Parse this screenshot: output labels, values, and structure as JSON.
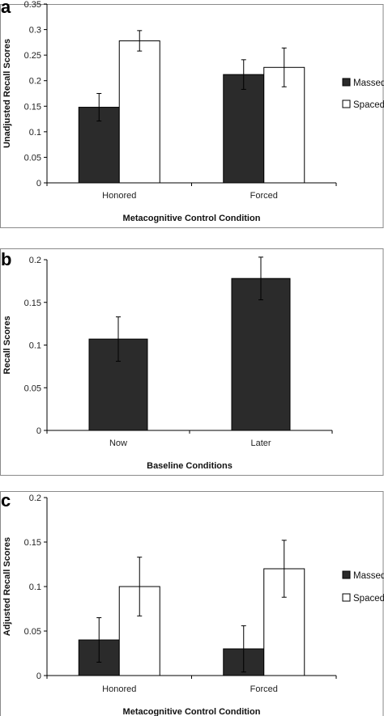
{
  "colors": {
    "massed": "#2b2b2b",
    "spaced": "#ffffff",
    "outline": "#000000",
    "frame": "#8a8a8a"
  },
  "chart_data": [
    {
      "panel": "a",
      "type": "bar",
      "categories": [
        "Honored",
        "Forced"
      ],
      "series": [
        {
          "name": "Massed",
          "values": [
            0.148,
            0.212
          ],
          "error": [
            0.027,
            0.029
          ]
        },
        {
          "name": "Spaced",
          "values": [
            0.278,
            0.226
          ],
          "error": [
            0.02,
            0.038
          ]
        }
      ],
      "xlabel": "Metacognitive Control Condition",
      "ylabel": "Unadjusted Recall Scores",
      "ylim": [
        0,
        0.35
      ],
      "yticks": [
        "0",
        "0.05",
        "0.1",
        "0.15",
        "0.2",
        "0.25",
        "0.3",
        "0.35"
      ],
      "legend": "right"
    },
    {
      "panel": "b",
      "type": "bar",
      "categories": [
        "Now",
        "Later"
      ],
      "series": [
        {
          "values": [
            0.107,
            0.178
          ],
          "error": [
            0.026,
            0.025
          ]
        }
      ],
      "xlabel": "Baseline Conditions",
      "ylabel": "Recall Scores",
      "ylim": [
        0,
        0.2
      ],
      "yticks": [
        "0",
        "0.05",
        "0.1",
        "0.15",
        "0.2"
      ]
    },
    {
      "panel": "c",
      "type": "bar",
      "categories": [
        "Honored",
        "Forced"
      ],
      "series": [
        {
          "name": "Massed",
          "values": [
            0.04,
            0.03
          ],
          "error": [
            0.025,
            0.026
          ]
        },
        {
          "name": "Spaced",
          "values": [
            0.1,
            0.12
          ],
          "error": [
            0.033,
            0.032
          ]
        }
      ],
      "xlabel": "Metacognitive Control Condition",
      "ylabel": "Adjusted Recall Scores",
      "ylim": [
        0,
        0.2
      ],
      "yticks": [
        "0",
        "0.05",
        "0.1",
        "0.15",
        "0.2"
      ],
      "legend": "right"
    }
  ]
}
